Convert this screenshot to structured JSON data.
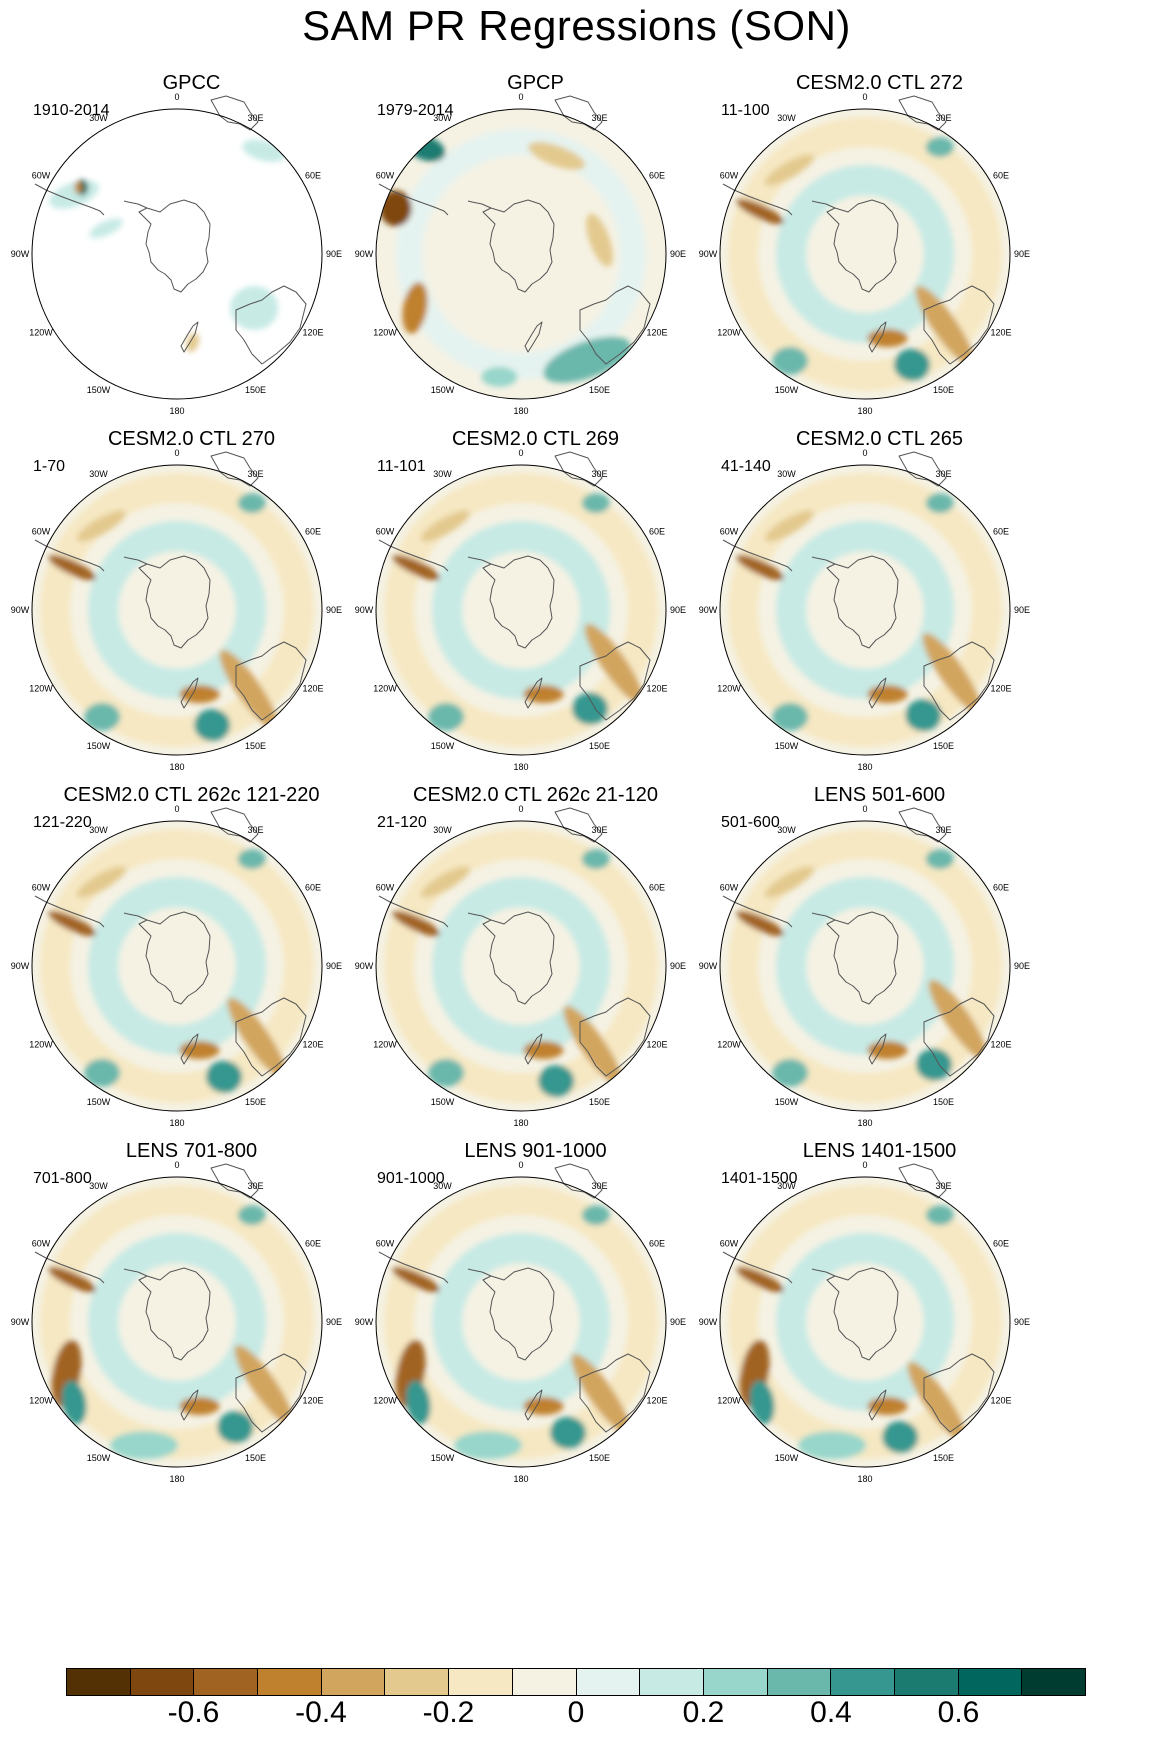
{
  "title": "SAM PR Regressions (SON)",
  "map_labels": [
    "0",
    "30E",
    "60E",
    "90E",
    "120E",
    "150E",
    "180",
    "150W",
    "120W",
    "90W",
    "60W",
    "30W"
  ],
  "colorbar": {
    "colors": [
      "#543005",
      "#7f4710",
      "#a16321",
      "#bf812d",
      "#d2a55e",
      "#e3c98e",
      "#f6e8c3",
      "#f5f2e4",
      "#e5f3f0",
      "#c7eae5",
      "#98d6cb",
      "#6ab7ac",
      "#35978f",
      "#1b7b71",
      "#01665e",
      "#003c30"
    ],
    "labels": [
      "-0.6",
      "-0.4",
      "-0.2",
      "0",
      "0.2",
      "0.4",
      "0.6"
    ]
  },
  "panels": [
    {
      "title": "GPCC",
      "period": "1910-2014",
      "style": "sparse"
    },
    {
      "title": "GPCP",
      "period": "1979-2014",
      "style": "obs"
    },
    {
      "title": "CESM2.0 CTL 272",
      "period": "11-100",
      "style": "model"
    },
    {
      "title": "CESM2.0 CTL 270",
      "period": "1-70",
      "style": "model"
    },
    {
      "title": "CESM2.0 CTL 269",
      "period": "11-101",
      "style": "model"
    },
    {
      "title": "CESM2.0 CTL 265",
      "period": "41-140",
      "style": "model"
    },
    {
      "title": "CESM2.0 CTL 262c 121-220",
      "period": "121-220",
      "style": "model"
    },
    {
      "title": "CESM2.0 CTL 262c 21-120",
      "period": "21-120",
      "style": "model"
    },
    {
      "title": "LENS 501-600",
      "period": "501-600",
      "style": "model"
    },
    {
      "title": "LENS 701-800",
      "period": "701-800",
      "style": "lens"
    },
    {
      "title": "LENS 901-1000",
      "period": "901-1000",
      "style": "lens"
    },
    {
      "title": "LENS 1401-1500",
      "period": "1401-1500",
      "style": "lens"
    }
  ]
}
